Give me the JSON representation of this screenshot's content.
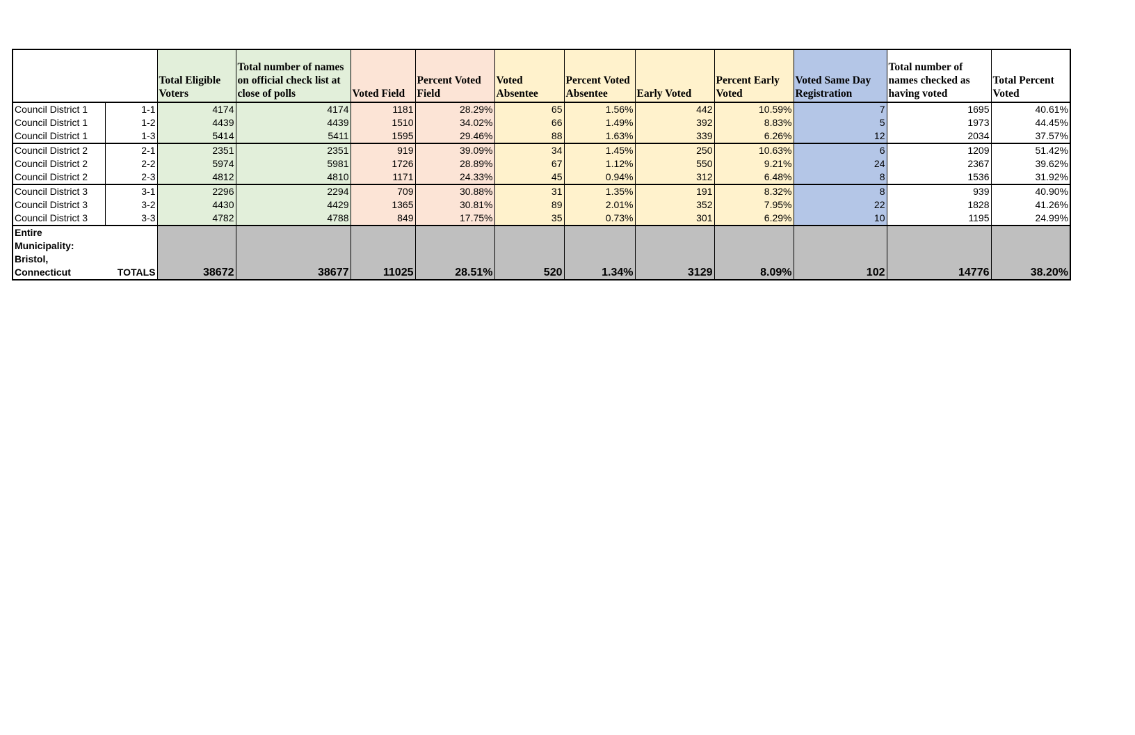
{
  "colors": {
    "green": "#e2efda",
    "pink": "#fce4d6",
    "yellow": "#fff2cc",
    "blue": "#b4c6e7",
    "gray": "#bfbfbf"
  },
  "headers": [
    "",
    "",
    "Total Eligible Voters",
    "Total number of names on official check list at close of polls",
    "Voted Field",
    "Percent Voted Field",
    "Voted Absentee",
    "Percent Voted Absentee",
    "Early Voted",
    "Percent Early Voted",
    "Voted Same Day Registration",
    "Total number of names checked as having voted",
    "Total Percent Voted"
  ],
  "rows": [
    [
      "Council District 1",
      "1-1",
      "4174",
      "4174",
      "1181",
      "28.29%",
      "65",
      "1.56%",
      "442",
      "10.59%",
      "7",
      "1695",
      "40.61%"
    ],
    [
      "Council District 1",
      "1-2",
      "4439",
      "4439",
      "1510",
      "34.02%",
      "66",
      "1.49%",
      "392",
      "8.83%",
      "5",
      "1973",
      "44.45%"
    ],
    [
      "Council District 1",
      "1-3",
      "5414",
      "5411",
      "1595",
      "29.46%",
      "88",
      "1.63%",
      "339",
      "6.26%",
      "12",
      "2034",
      "37.57%"
    ],
    [
      "Council District 2",
      "2-1",
      "2351",
      "2351",
      "919",
      "39.09%",
      "34",
      "1.45%",
      "250",
      "10.63%",
      "6",
      "1209",
      "51.42%"
    ],
    [
      "Council District 2",
      "2-2",
      "5974",
      "5981",
      "1726",
      "28.89%",
      "67",
      "1.12%",
      "550",
      "9.21%",
      "24",
      "2367",
      "39.62%"
    ],
    [
      "Council District 2",
      "2-3",
      "4812",
      "4810",
      "1171",
      "24.33%",
      "45",
      "0.94%",
      "312",
      "6.48%",
      "8",
      "1536",
      "31.92%"
    ],
    [
      "Council District 3",
      "3-1",
      "2296",
      "2294",
      "709",
      "30.88%",
      "31",
      "1.35%",
      "191",
      "8.32%",
      "8",
      "939",
      "40.90%"
    ],
    [
      "Council District 3",
      "3-2",
      "4430",
      "4429",
      "1365",
      "30.81%",
      "89",
      "2.01%",
      "352",
      "7.95%",
      "22",
      "1828",
      "41.26%"
    ],
    [
      "Council District 3",
      "3-3",
      "4782",
      "4788",
      "849",
      "17.75%",
      "35",
      "0.73%",
      "301",
      "6.29%",
      "10",
      "1195",
      "24.99%"
    ]
  ],
  "totals": [
    "Entire Municipality: Bristol, Connecticut",
    "TOTALS",
    "38672",
    "38677",
    "11025",
    "28.51%",
    "520",
    "1.34%",
    "3129",
    "8.09%",
    "102",
    "14776",
    "38.20%"
  ]
}
